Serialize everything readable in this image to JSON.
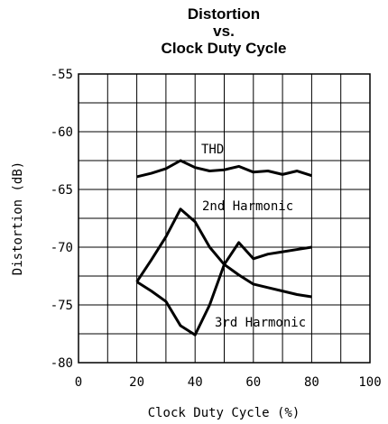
{
  "chart_data": {
    "type": "line",
    "title": [
      "Distortion",
      "vs.",
      "Clock Duty Cycle"
    ],
    "x_label": "Clock Duty Cycle (%)",
    "y_label": "Distortion (dB)",
    "x": [
      20,
      25,
      30,
      35,
      40,
      45,
      50,
      55,
      60,
      65,
      70,
      75,
      80
    ],
    "series": [
      {
        "name": "THD",
        "color": "#000000",
        "values": [
          -63.9,
          -63.6,
          -63.2,
          -62.5,
          -63.1,
          -63.4,
          -63.3,
          -63.0,
          -63.5,
          -63.4,
          -63.7,
          -63.4,
          -63.8
        ]
      },
      {
        "name": "2nd Harmonic",
        "color": "#000000",
        "values": [
          -73.0,
          -71.1,
          -69.1,
          -66.7,
          -67.8,
          -70.0,
          -71.5,
          -72.4,
          -73.2,
          -73.5,
          -73.8,
          -74.1,
          -74.3
        ]
      },
      {
        "name": "3rd Harmonic",
        "color": "#000000",
        "values": [
          -73.0,
          -73.8,
          -74.7,
          -76.8,
          -77.6,
          -75.0,
          -71.5,
          -69.6,
          -71.0,
          -70.6,
          -70.4,
          -70.2,
          -70.0
        ]
      }
    ],
    "xlim": [
      0,
      100
    ],
    "xticks": [
      0,
      20,
      40,
      60,
      80,
      100
    ],
    "ylim": [
      -80,
      -55
    ],
    "yticks": [
      -55,
      -60,
      -65,
      -70,
      -75,
      -80
    ],
    "xgrid": [
      0,
      10,
      20,
      30,
      40,
      50,
      60,
      70,
      80,
      90,
      100
    ],
    "ygrid": [
      -55,
      -57.5,
      -60,
      -62.5,
      -65,
      -67.5,
      -70,
      -72.5,
      -75,
      -77.5,
      -80
    ]
  }
}
